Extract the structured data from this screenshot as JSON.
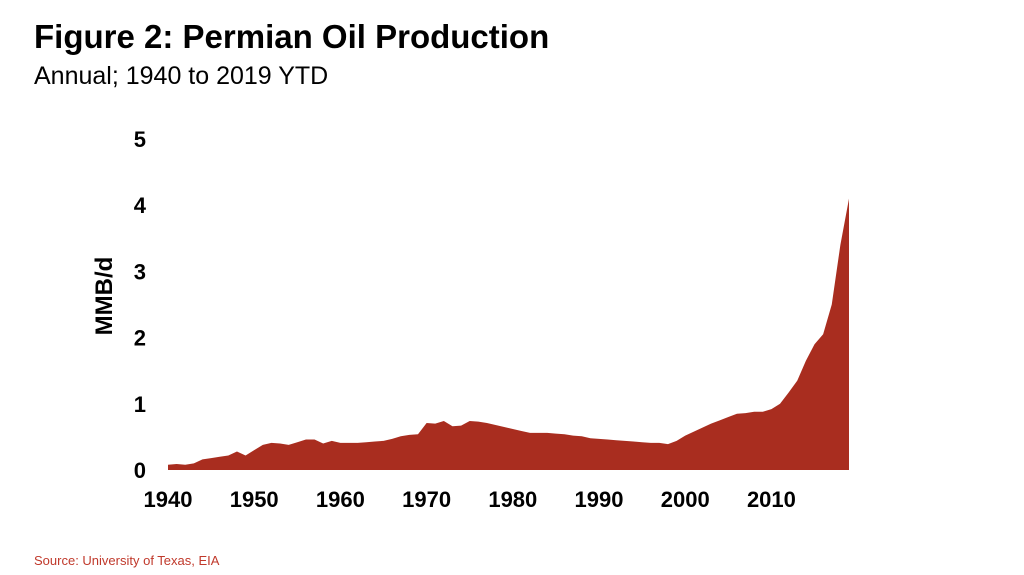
{
  "header": {
    "title": "Figure 2: Permian Oil Production",
    "subtitle": "Annual; 1940 to 2019 YTD"
  },
  "footer": {
    "source": "Source: University of Texas, EIA"
  },
  "colors": {
    "area_fill": "#a92d1f",
    "source_text": "#c0392b",
    "text": "#000000"
  },
  "chart_data": {
    "type": "area",
    "title": "Figure 2: Permian Oil Production",
    "subtitle": "Annual; 1940 to 2019 YTD",
    "xlabel": "",
    "ylabel": "MMB/d",
    "xlim": [
      1940,
      2019
    ],
    "ylim": [
      0,
      5
    ],
    "x_ticks": [
      1940,
      1950,
      1960,
      1970,
      1980,
      1990,
      2000,
      2010
    ],
    "y_ticks": [
      0,
      1,
      2,
      3,
      4,
      5
    ],
    "grid": false,
    "legend": "none",
    "x": [
      1940,
      1941,
      1942,
      1943,
      1944,
      1945,
      1946,
      1947,
      1948,
      1949,
      1950,
      1951,
      1952,
      1953,
      1954,
      1955,
      1956,
      1957,
      1958,
      1959,
      1960,
      1961,
      1962,
      1963,
      1964,
      1965,
      1966,
      1967,
      1968,
      1969,
      1970,
      1971,
      1972,
      1973,
      1974,
      1975,
      1976,
      1977,
      1978,
      1979,
      1980,
      1981,
      1982,
      1983,
      1984,
      1985,
      1986,
      1987,
      1988,
      1989,
      1990,
      1991,
      1992,
      1993,
      1994,
      1995,
      1996,
      1997,
      1998,
      1999,
      2000,
      2001,
      2002,
      2003,
      2004,
      2005,
      2006,
      2007,
      2008,
      2009,
      2010,
      2011,
      2012,
      2013,
      2014,
      2015,
      2016,
      2017,
      2018,
      2019
    ],
    "values": [
      0.08,
      0.09,
      0.08,
      0.1,
      0.16,
      0.18,
      0.2,
      0.22,
      0.28,
      0.22,
      0.3,
      0.38,
      0.41,
      0.4,
      0.38,
      0.42,
      0.46,
      0.46,
      0.4,
      0.44,
      0.41,
      0.41,
      0.41,
      0.42,
      0.43,
      0.44,
      0.47,
      0.51,
      0.53,
      0.54,
      0.71,
      0.7,
      0.74,
      0.66,
      0.67,
      0.74,
      0.73,
      0.71,
      0.68,
      0.65,
      0.62,
      0.59,
      0.56,
      0.56,
      0.56,
      0.55,
      0.54,
      0.52,
      0.51,
      0.48,
      0.47,
      0.46,
      0.45,
      0.44,
      0.43,
      0.42,
      0.41,
      0.41,
      0.39,
      0.44,
      0.52,
      0.58,
      0.64,
      0.7,
      0.75,
      0.8,
      0.85,
      0.86,
      0.88,
      0.88,
      0.92,
      1.0,
      1.17,
      1.35,
      1.65,
      1.9,
      2.05,
      2.5,
      3.4,
      4.1
    ]
  }
}
